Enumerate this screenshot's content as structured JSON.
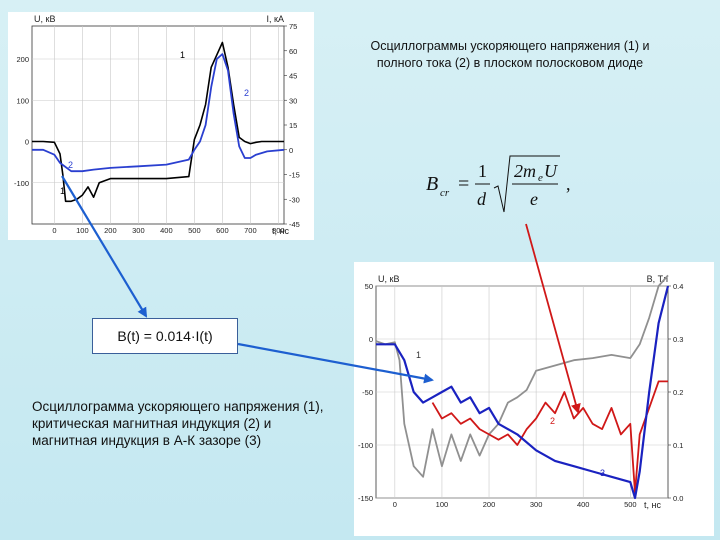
{
  "caption_top": [
    "Осциллограммы ускоряющего напряжения (1) и",
    "полного тока (2) в плоском полосковом диоде"
  ],
  "formula": {
    "lhs": "B",
    "lhs_sub": "cr",
    "num": "1",
    "den": "d",
    "rad_num": "2m",
    "rad_num_sub": "e",
    "rad_num_tail": "U",
    "rad_den": "e",
    "trail": ","
  },
  "bt_formula": "B(t) = 0.014·I(t)",
  "caption_bottom": "Осциллограмма ускоряющего напряжения (1), критическая магнитная индукция (2) и магнитная индукция в А-К зазоре (3)",
  "chart_data": [
    {
      "type": "line",
      "ylabel_left": "U, кВ",
      "ylabel_right": "I, кА",
      "xlabel": "t, нс",
      "xlim": [
        -80,
        820
      ],
      "ylim_left": [
        -200,
        280
      ],
      "ylim_right": [
        -45,
        75
      ],
      "xticks": [
        "0",
        "100",
        "200",
        "300",
        "400",
        "500",
        "600",
        "700",
        "800"
      ],
      "yticks_left": [
        "200",
        "100",
        "0",
        "-100"
      ],
      "yticks_right": [
        "75",
        "60",
        "45",
        "30",
        "15",
        "0",
        "-15",
        "-30",
        "-45"
      ],
      "grid": true,
      "series": [
        {
          "name": "1",
          "axis": "left",
          "color": "#000000",
          "x": [
            -80,
            -40,
            0,
            20,
            30,
            40,
            60,
            80,
            100,
            120,
            140,
            160,
            200,
            300,
            400,
            480,
            500,
            520,
            540,
            560,
            580,
            600,
            620,
            640,
            660,
            680,
            700,
            720,
            740,
            760,
            780,
            800,
            820
          ],
          "y": [
            0,
            0,
            -2,
            -30,
            -80,
            -145,
            -145,
            -140,
            -130,
            -110,
            -135,
            -100,
            -90,
            -90,
            -90,
            -85,
            5,
            40,
            90,
            180,
            210,
            240,
            180,
            90,
            10,
            0,
            -5,
            -2,
            0,
            0,
            0,
            0,
            0
          ]
        },
        {
          "name": "2",
          "axis": "right",
          "color": "#2a3fd0",
          "x": [
            -80,
            -40,
            0,
            20,
            60,
            100,
            140,
            200,
            300,
            400,
            480,
            500,
            520,
            540,
            560,
            580,
            600,
            620,
            640,
            660,
            680,
            700,
            720,
            760,
            820
          ],
          "y": [
            0,
            0,
            -3,
            -8,
            -13,
            -13,
            -12,
            -11,
            -10,
            -9,
            -6,
            0,
            5,
            15,
            38,
            55,
            58,
            48,
            22,
            2,
            -5,
            -5,
            -3,
            -1,
            0
          ]
        }
      ],
      "series_labels": [
        "1",
        "2",
        "2",
        "1"
      ]
    },
    {
      "type": "line",
      "ylabel_left": "U, кВ",
      "ylabel_right": "B, Тл",
      "xlabel": "t, нс",
      "xlim": [
        -40,
        580
      ],
      "ylim_left": [
        -150,
        50
      ],
      "ylim_right": [
        0,
        0.4
      ],
      "xticks": [
        "0",
        "100",
        "200",
        "300",
        "400",
        "500"
      ],
      "yticks_left": [
        "50",
        "0",
        "-50",
        "-100",
        "-150"
      ],
      "yticks_right": [
        "0.4",
        "0.3",
        "0.2",
        "0.1",
        "0.0"
      ],
      "grid": true,
      "series": [
        {
          "name": "1",
          "axis": "left",
          "color": "#909090",
          "x": [
            -40,
            -20,
            0,
            10,
            20,
            40,
            60,
            80,
            100,
            120,
            140,
            160,
            180,
            200,
            220,
            240,
            260,
            280,
            300,
            340,
            380,
            420,
            460,
            500,
            520,
            540,
            560,
            580
          ],
          "y": [
            -2,
            -5,
            -3,
            -20,
            -80,
            -120,
            -130,
            -85,
            -120,
            -90,
            -115,
            -90,
            -110,
            -90,
            -80,
            -60,
            -55,
            -48,
            -30,
            -25,
            -20,
            -18,
            -15,
            -18,
            -5,
            20,
            50,
            60
          ]
        },
        {
          "name": "2",
          "axis": "right",
          "color": "#d01818",
          "x": [
            80,
            100,
            120,
            140,
            160,
            180,
            200,
            220,
            240,
            260,
            280,
            300,
            320,
            340,
            360,
            380,
            400,
            420,
            440,
            460,
            480,
            500,
            510,
            520,
            540,
            560,
            580
          ],
          "y": [
            0.18,
            0.15,
            0.16,
            0.14,
            0.15,
            0.13,
            0.12,
            0.11,
            0.12,
            0.1,
            0.13,
            0.15,
            0.18,
            0.16,
            0.2,
            0.15,
            0.17,
            0.14,
            0.13,
            0.17,
            0.12,
            0.14,
            0.01,
            0.12,
            0.17,
            0.22,
            0.22
          ]
        },
        {
          "name": "3",
          "axis": "right",
          "color": "#1a22c0",
          "x": [
            -40,
            0,
            20,
            40,
            60,
            80,
            100,
            120,
            140,
            160,
            180,
            200,
            220,
            260,
            300,
            340,
            380,
            420,
            460,
            500,
            510,
            520,
            540,
            560,
            580
          ],
          "y": [
            0.29,
            0.29,
            0.26,
            0.2,
            0.18,
            0.19,
            0.2,
            0.21,
            0.18,
            0.19,
            0.16,
            0.17,
            0.14,
            0.12,
            0.09,
            0.07,
            0.06,
            0.05,
            0.04,
            0.03,
            0.0,
            0.05,
            0.2,
            0.33,
            0.4
          ]
        }
      ],
      "series_labels": [
        "1",
        "2",
        "3"
      ]
    }
  ]
}
